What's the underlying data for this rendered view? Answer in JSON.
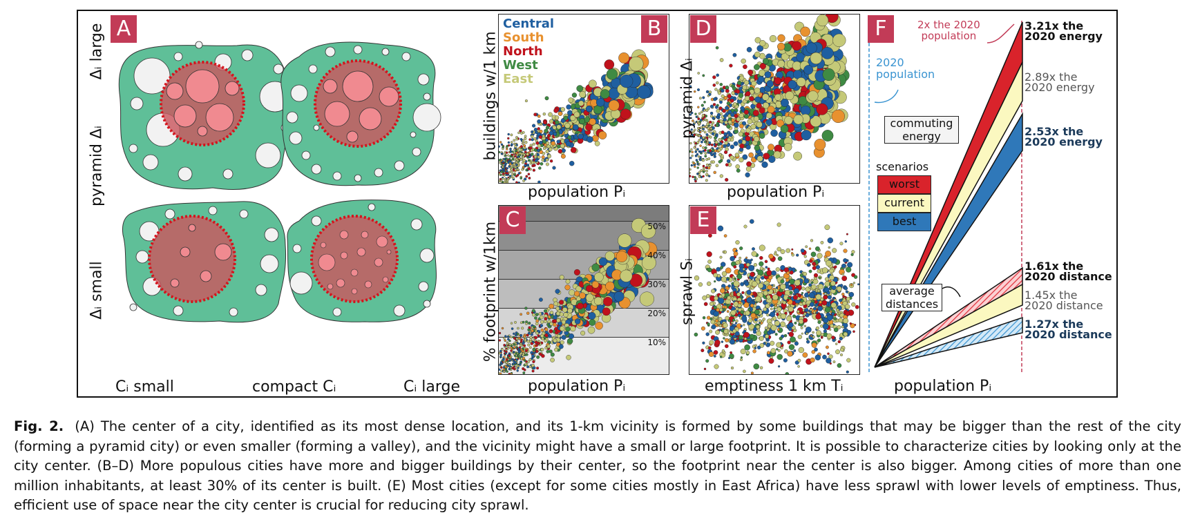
{
  "figure": {
    "panel_letters": {
      "a": "A",
      "b": "B",
      "c": "C",
      "d": "D",
      "e": "E",
      "f": "F"
    },
    "panel_a": {
      "label_delta_large": "Δᵢ large",
      "label_pyramid": "pyramid Δᵢ",
      "label_delta_small": "Δᵢ small",
      "label_c_small": "Cᵢ small",
      "label_compact": "compact Cᵢ",
      "label_c_large": "Cᵢ large"
    },
    "panel_b": {
      "ylabel": "buildings w/1 km",
      "xlabel": "population Pᵢ",
      "legend": [
        {
          "name": "Central",
          "color": "#1f5fa0"
        },
        {
          "name": "South",
          "color": "#e8912f"
        },
        {
          "name": "North",
          "color": "#c0121c"
        },
        {
          "name": "West",
          "color": "#3f8a43"
        },
        {
          "name": "East",
          "color": "#c5c978"
        }
      ]
    },
    "panel_c": {
      "ylabel": "% footprint w/1km",
      "xlabel": "population Pᵢ",
      "bands": [
        "50%",
        "40%",
        "30%",
        "20%",
        "10%"
      ]
    },
    "panel_d": {
      "ylabel": "pyramid Δᵢ",
      "xlabel": "population Pᵢ"
    },
    "panel_e": {
      "ylabel": "sprawl Sᵢ",
      "xlabel": "emptiness 1 km Tᵢ"
    },
    "panel_f": {
      "xlabel": "population Pᵢ",
      "note_2x_line1": "2x the 2020",
      "note_2x_line2": "population",
      "note_2020_line1": "2020",
      "note_2020_line2": "population",
      "commuting_line1": "commuting",
      "commuting_line2": "energy",
      "scenarios_title": "scenarios",
      "scenario_worst": "worst",
      "scenario_current": "current",
      "scenario_best": "best",
      "avg_line1": "average",
      "avg_line2": "distances",
      "energy_worst_1": "3.21x the",
      "energy_worst_2": "2020 energy",
      "energy_current_1": "2.89x the",
      "energy_current_2": "2020 energy",
      "energy_best_1": "2.53x the",
      "energy_best_2": "2020 energy",
      "dist_worst_1": "1.61x the",
      "dist_worst_2": "2020 distance",
      "dist_current_1": "1.45x the",
      "dist_current_2": "2020 distance",
      "dist_best_1": "1.27x the",
      "dist_best_2": "2020 distance",
      "colors": {
        "worst": "#d9232b",
        "current": "#fbf8c0",
        "best": "#2f78b9",
        "pink": "#c23b57",
        "blue_note": "#3a94d1"
      }
    }
  },
  "caption": {
    "label": "Fig. 2.",
    "text": "(A) The center of a city, identified as its most dense location, and its 1-km vicinity is formed by some buildings that may be bigger than the rest of the city (forming a pyramid city) or even smaller (forming a valley), and the vicinity might have a small or large footprint. It is possible to characterize cities by looking only at the city center. (B–D) More populous cities have more and bigger buildings by their center, so the footprint near the center is also bigger. Among cities of more than one million inhabitants, at least 30% of its center is built. (E) Most cities (except for some cities mostly in East Africa) have less sprawl with lower levels of emptiness. Thus, efficient use of space near the city center is crucial for reducing city sprawl."
  }
}
